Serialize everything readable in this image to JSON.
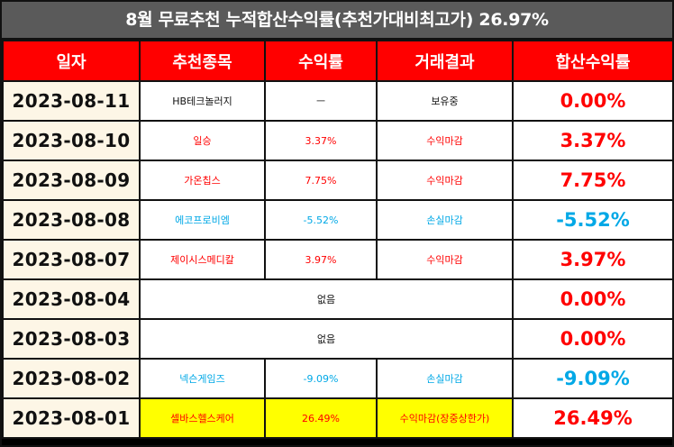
{
  "title": "8월 무료추천 누적합산수익률(추천가대비최고가) 26.97%",
  "colors": {
    "profit": "#ff0000",
    "loss": "#00a8e6",
    "header_bg": "#ff0000",
    "title_bg": "#5a5a5a",
    "highlight": "#ffff00",
    "date_bg": "#fdf6e6"
  },
  "headers": {
    "date": "일자",
    "stock": "추천종목",
    "return": "수익률",
    "result": "거래결과",
    "total": "합산수익률"
  },
  "rows": [
    {
      "date": "2023-08-11",
      "stock": "HB테크놀러지",
      "return": "ㅡ",
      "result": "보유중",
      "total": "0.00%"
    },
    {
      "date": "2023-08-10",
      "stock": "일승",
      "return": "3.37%",
      "result": "수익마감",
      "total": "3.37%"
    },
    {
      "date": "2023-08-09",
      "stock": "가온칩스",
      "return": "7.75%",
      "result": "수익마감",
      "total": "7.75%"
    },
    {
      "date": "2023-08-08",
      "stock": "에코프로비엠",
      "return": "-5.52%",
      "result": "손실마감",
      "total": "-5.52%"
    },
    {
      "date": "2023-08-07",
      "stock": "제이시스메디칼",
      "return": "3.97%",
      "result": "수익마감",
      "total": "3.97%"
    },
    {
      "date": "2023-08-04",
      "none": "없음",
      "total": "0.00%"
    },
    {
      "date": "2023-08-03",
      "none": "없음",
      "total": "0.00%"
    },
    {
      "date": "2023-08-02",
      "stock": "넥슨게임즈",
      "return": "-9.09%",
      "result": "손실마감",
      "total": "-9.09%"
    },
    {
      "date": "2023-08-01",
      "stock": "셀바스헬스케어",
      "return": "26.49%",
      "result": "수익마감(장중상한가)",
      "total": "26.49%"
    }
  ]
}
